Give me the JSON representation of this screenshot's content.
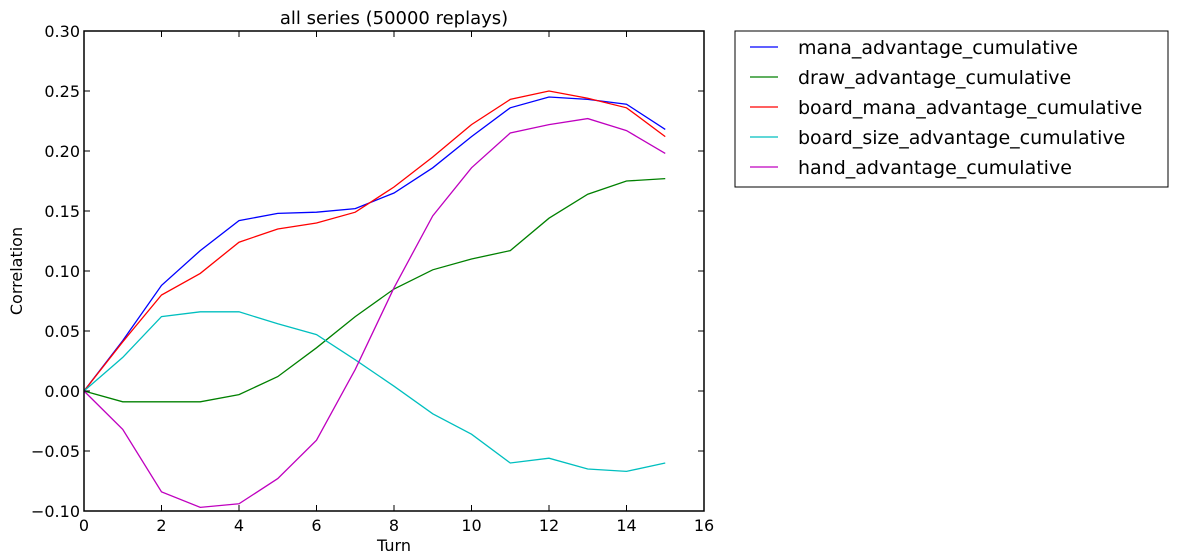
{
  "chart_data": {
    "type": "line",
    "title": "all series (50000 replays)",
    "xlabel": "Turn",
    "ylabel": "Correlation",
    "xlim": [
      0,
      16
    ],
    "ylim": [
      -0.1,
      0.3
    ],
    "xticks": [
      "0",
      "2",
      "4",
      "6",
      "8",
      "10",
      "12",
      "14",
      "16"
    ],
    "yticks": [
      "0.30",
      "0.25",
      "0.20",
      "0.15",
      "0.10",
      "0.05",
      "0.00",
      "−0.05",
      "−0.10"
    ],
    "grid": false,
    "legend_position": "outside upper right",
    "x": [
      0,
      1,
      2,
      3,
      4,
      5,
      6,
      7,
      8,
      9,
      10,
      11,
      12,
      13,
      14,
      15
    ],
    "series": [
      {
        "name": "mana_advantage_cumulative",
        "color": "#0000ff",
        "values": [
          0.0,
          0.042,
          0.088,
          0.117,
          0.142,
          0.148,
          0.149,
          0.152,
          0.165,
          0.186,
          0.212,
          0.236,
          0.245,
          0.243,
          0.239,
          0.218
        ]
      },
      {
        "name": "draw_advantage_cumulative",
        "color": "#008000",
        "values": [
          0.0,
          -0.009,
          -0.009,
          -0.009,
          -0.003,
          0.012,
          0.036,
          0.062,
          0.085,
          0.101,
          0.11,
          0.117,
          0.144,
          0.164,
          0.175,
          0.177
        ]
      },
      {
        "name": "board_mana_advantage_cumulative",
        "color": "#ff0000",
        "values": [
          0.0,
          0.041,
          0.08,
          0.098,
          0.124,
          0.135,
          0.14,
          0.149,
          0.17,
          0.195,
          0.222,
          0.243,
          0.25,
          0.244,
          0.236,
          0.212
        ]
      },
      {
        "name": "board_size_advantage_cumulative",
        "color": "#00bfbf",
        "values": [
          0.0,
          0.028,
          0.062,
          0.066,
          0.066,
          0.056,
          0.047,
          0.026,
          0.004,
          -0.019,
          -0.036,
          -0.06,
          -0.056,
          -0.065,
          -0.067,
          -0.06
        ]
      },
      {
        "name": "hand_advantage_cumulative",
        "color": "#bf00bf",
        "values": [
          0.0,
          -0.032,
          -0.084,
          -0.097,
          -0.094,
          -0.073,
          -0.041,
          0.018,
          0.086,
          0.146,
          0.186,
          0.215,
          0.222,
          0.227,
          0.217,
          0.198
        ]
      }
    ]
  }
}
